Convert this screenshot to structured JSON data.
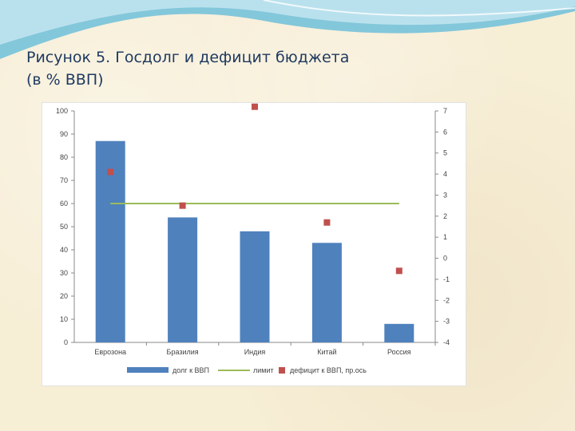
{
  "slide": {
    "title_line1": "Рисунок 5. Госдолг и дефицит бюджета",
    "title_line2": "(в % ВВП)"
  },
  "colors": {
    "background": "#f7eed6",
    "title": "#1f3a60",
    "bar": "#4f81bd",
    "limit_line": "#9bbb59",
    "marker": "#c0504d",
    "wave": "#5fb6d6"
  },
  "chart_data": {
    "type": "bar",
    "categories": [
      "Еврозона",
      "Бразилия",
      "Индия",
      "Китай",
      "Россия"
    ],
    "series": [
      {
        "name": "долг к ВВП",
        "kind": "bar",
        "axis": "left",
        "values": [
          87,
          54,
          48,
          43,
          8
        ]
      },
      {
        "name": "лимит",
        "kind": "line",
        "axis": "left",
        "values": [
          60,
          60,
          60,
          60,
          60
        ]
      },
      {
        "name": "дефицит к ВВП, пр.ось",
        "kind": "scatter",
        "axis": "right",
        "values": [
          4.1,
          2.5,
          7.2,
          1.7,
          -0.6
        ]
      }
    ],
    "left_axis": {
      "min": 0,
      "max": 100,
      "ticks": [
        "0",
        "10",
        "20",
        "30",
        "40",
        "50",
        "60",
        "70",
        "80",
        "90",
        "100"
      ]
    },
    "right_axis": {
      "min": -4,
      "max": 7,
      "ticks": [
        "-4",
        "-3",
        "-2",
        "-1",
        "0",
        "1",
        "2",
        "3",
        "4",
        "5",
        "6",
        "7"
      ]
    },
    "legend_position": "bottom",
    "grid": false
  }
}
